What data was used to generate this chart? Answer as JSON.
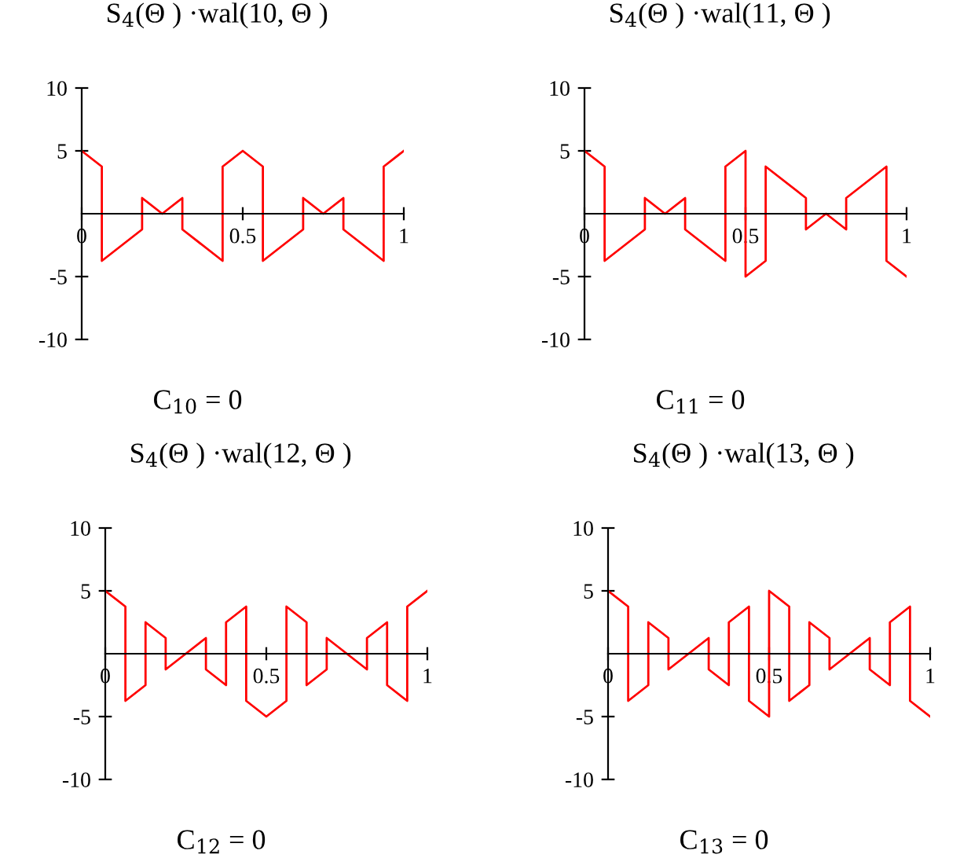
{
  "chart_data": [
    {
      "type": "line",
      "title": "S$_{4}$(Θ ) ·wal(10, Θ )",
      "annotations": [
        "C$_{10}$ = 0"
      ],
      "xlim": [
        0,
        1
      ],
      "ylim": [
        -10,
        10
      ],
      "xticks": [
        0,
        0.5,
        1
      ],
      "yticks": [
        -10,
        -5,
        5,
        10
      ],
      "grid": false,
      "marker": "none",
      "line_style": "solid",
      "series": [
        {
          "color": "#ff0000",
          "x": [
            0,
            0.0625,
            0.0625,
            0.1875,
            0.1875,
            0.25,
            0.3125,
            0.3125,
            0.4375,
            0.4375,
            0.5,
            0.5625,
            0.5625,
            0.6875,
            0.6875,
            0.75,
            0.8125,
            0.8125,
            0.9375,
            0.9375,
            1
          ],
          "values": [
            5,
            3.75,
            -3.75,
            -1.25,
            1.25,
            0,
            1.25,
            -1.25,
            -3.75,
            3.75,
            5,
            3.75,
            -3.75,
            -1.25,
            1.25,
            0,
            1.25,
            -1.25,
            -3.75,
            3.75,
            5
          ]
        }
      ]
    },
    {
      "type": "line",
      "title": "S$_{4}$(Θ ) ·wal(11, Θ )",
      "annotations": [
        "C$_{11}$ = 0"
      ],
      "xlim": [
        0,
        1
      ],
      "ylim": [
        -10,
        10
      ],
      "xticks": [
        0,
        0.5,
        1
      ],
      "yticks": [
        -10,
        -5,
        5,
        10
      ],
      "grid": false,
      "marker": "none",
      "line_style": "solid",
      "series": [
        {
          "color": "#ff0000",
          "x": [
            0,
            0.0625,
            0.0625,
            0.1875,
            0.1875,
            0.25,
            0.3125,
            0.3125,
            0.4375,
            0.4375,
            0.5,
            0.5,
            0.5625,
            0.5625,
            0.6875,
            0.6875,
            0.75,
            0.8125,
            0.8125,
            0.9375,
            0.9375,
            1
          ],
          "values": [
            5,
            3.75,
            -3.75,
            -1.25,
            1.25,
            0,
            1.25,
            -1.25,
            -3.75,
            3.75,
            5,
            -5,
            -3.75,
            3.75,
            1.25,
            -1.25,
            0,
            -1.25,
            1.25,
            3.75,
            -3.75,
            -5
          ]
        }
      ]
    },
    {
      "type": "line",
      "title": "S$_{4}$(Θ ) ·wal(12, Θ )",
      "annotations": [
        "C$_{12}$ = 0"
      ],
      "xlim": [
        0,
        1
      ],
      "ylim": [
        -10,
        10
      ],
      "xticks": [
        0,
        0.5,
        1
      ],
      "yticks": [
        -10,
        -5,
        5,
        10
      ],
      "grid": false,
      "marker": "none",
      "line_style": "solid",
      "series": [
        {
          "color": "#ff0000",
          "x": [
            0,
            0.0625,
            0.0625,
            0.125,
            0.125,
            0.1875,
            0.1875,
            0.25,
            0.3125,
            0.3125,
            0.375,
            0.375,
            0.4375,
            0.4375,
            0.5,
            0.5625,
            0.5625,
            0.625,
            0.625,
            0.6875,
            0.6875,
            0.75,
            0.8125,
            0.8125,
            0.875,
            0.875,
            0.9375,
            0.9375,
            1
          ],
          "values": [
            5,
            3.75,
            -3.75,
            -2.5,
            2.5,
            1.25,
            -1.25,
            0,
            1.25,
            -1.25,
            -2.5,
            2.5,
            3.75,
            -3.75,
            -5,
            -3.75,
            3.75,
            2.5,
            -2.5,
            -1.25,
            1.25,
            0,
            -1.25,
            1.25,
            2.5,
            -2.5,
            -3.75,
            3.75,
            5
          ]
        }
      ]
    },
    {
      "type": "line",
      "title": "S$_{4}$(Θ ) ·wal(13, Θ )",
      "annotations": [
        "C$_{13}$ = 0"
      ],
      "xlim": [
        0,
        1
      ],
      "ylim": [
        -10,
        10
      ],
      "xticks": [
        0,
        0.5,
        1
      ],
      "yticks": [
        -10,
        -5,
        5,
        10
      ],
      "grid": false,
      "marker": "none",
      "line_style": "solid",
      "series": [
        {
          "color": "#ff0000",
          "x": [
            0,
            0.0625,
            0.0625,
            0.125,
            0.125,
            0.1875,
            0.1875,
            0.25,
            0.3125,
            0.3125,
            0.375,
            0.375,
            0.4375,
            0.4375,
            0.5,
            0.5,
            0.5625,
            0.5625,
            0.625,
            0.625,
            0.6875,
            0.6875,
            0.75,
            0.8125,
            0.8125,
            0.875,
            0.875,
            0.9375,
            0.9375,
            1
          ],
          "values": [
            5,
            3.75,
            -3.75,
            -2.5,
            2.5,
            1.25,
            -1.25,
            0,
            1.25,
            -1.25,
            -2.5,
            2.5,
            3.75,
            -3.75,
            -5,
            5,
            3.75,
            -3.75,
            -2.5,
            2.5,
            1.25,
            -1.25,
            0,
            1.25,
            -1.25,
            -2.5,
            2.5,
            3.75,
            -3.75,
            -5
          ]
        }
      ]
    }
  ]
}
